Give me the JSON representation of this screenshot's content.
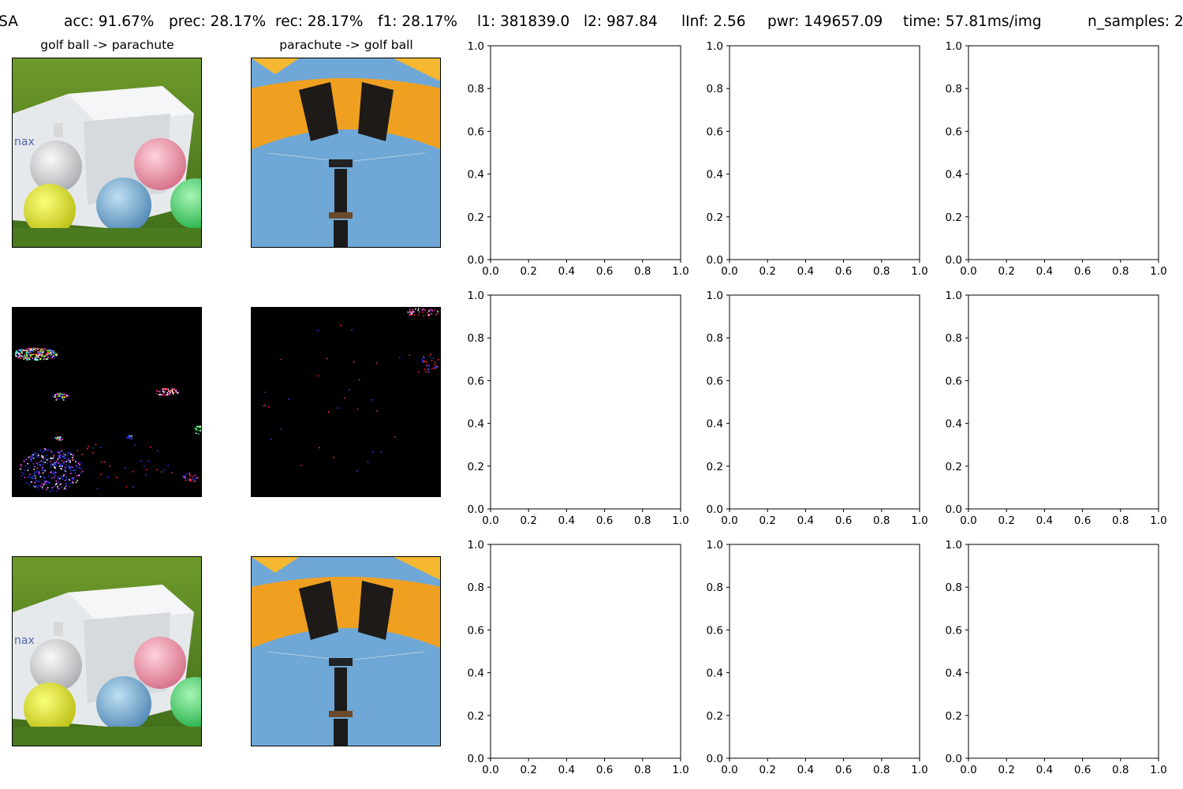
{
  "figure": {
    "suptitle": {
      "method": "PSA",
      "acc": "acc: 91.67%",
      "prec": "prec: 28.17%",
      "rec": "rec: 28.17%",
      "f1": "f1: 28.17%",
      "l1": "l1: 381839.0",
      "l2": "l2: 987.84",
      "linf": "lInf: 2.56",
      "pwr": "pwr: 149657.09",
      "time": "time: 57.81ms/img",
      "n_samples": "n_samples: 2"
    },
    "image_panels": [
      {
        "title": "golf ball -> parachute",
        "row_kind": "original",
        "content": "golf-balls-photo"
      },
      {
        "title": "parachute -> golf ball",
        "row_kind": "original",
        "content": "parachute-photo"
      },
      {
        "title": "",
        "row_kind": "perturbation",
        "content": "golf-ball-noise"
      },
      {
        "title": "",
        "row_kind": "perturbation",
        "content": "parachute-noise"
      },
      {
        "title": "",
        "row_kind": "adversarial",
        "content": "golf-balls-photo"
      },
      {
        "title": "",
        "row_kind": "adversarial",
        "content": "parachute-photo"
      }
    ],
    "colors": {
      "grass": "#5f8a2e",
      "sky": "#6fa8d6",
      "canopy": "#f0a020",
      "box": "#e9ecee"
    }
  },
  "chart_data": {
    "type": "scatter",
    "description_note": "",
    "panels": [
      {
        "row": 0,
        "col": 2,
        "xlim": [
          0.0,
          1.0
        ],
        "ylim": [
          0.0,
          1.0
        ],
        "points": []
      },
      {
        "row": 0,
        "col": 3,
        "xlim": [
          0.0,
          1.0
        ],
        "ylim": [
          0.0,
          1.0
        ],
        "points": []
      },
      {
        "row": 0,
        "col": 4,
        "xlim": [
          0.0,
          1.0
        ],
        "ylim": [
          0.0,
          1.0
        ],
        "points": []
      },
      {
        "row": 1,
        "col": 2,
        "xlim": [
          0.0,
          1.0
        ],
        "ylim": [
          0.0,
          1.0
        ],
        "points": []
      },
      {
        "row": 1,
        "col": 3,
        "xlim": [
          0.0,
          1.0
        ],
        "ylim": [
          0.0,
          1.0
        ],
        "points": []
      },
      {
        "row": 1,
        "col": 4,
        "xlim": [
          0.0,
          1.0
        ],
        "ylim": [
          0.0,
          1.0
        ],
        "points": []
      },
      {
        "row": 2,
        "col": 2,
        "xlim": [
          0.0,
          1.0
        ],
        "ylim": [
          0.0,
          1.0
        ],
        "points": []
      },
      {
        "row": 2,
        "col": 3,
        "xlim": [
          0.0,
          1.0
        ],
        "ylim": [
          0.0,
          1.0
        ],
        "points": []
      },
      {
        "row": 2,
        "col": 4,
        "xlim": [
          0.0,
          1.0
        ],
        "ylim": [
          0.0,
          1.0
        ],
        "points": []
      }
    ],
    "xticks": [
      "0.0",
      "0.2",
      "0.4",
      "0.6",
      "0.8",
      "1.0"
    ],
    "yticks": [
      "0.0",
      "0.2",
      "0.4",
      "0.6",
      "0.8",
      "1.0"
    ],
    "grid": false,
    "legend": "none"
  }
}
